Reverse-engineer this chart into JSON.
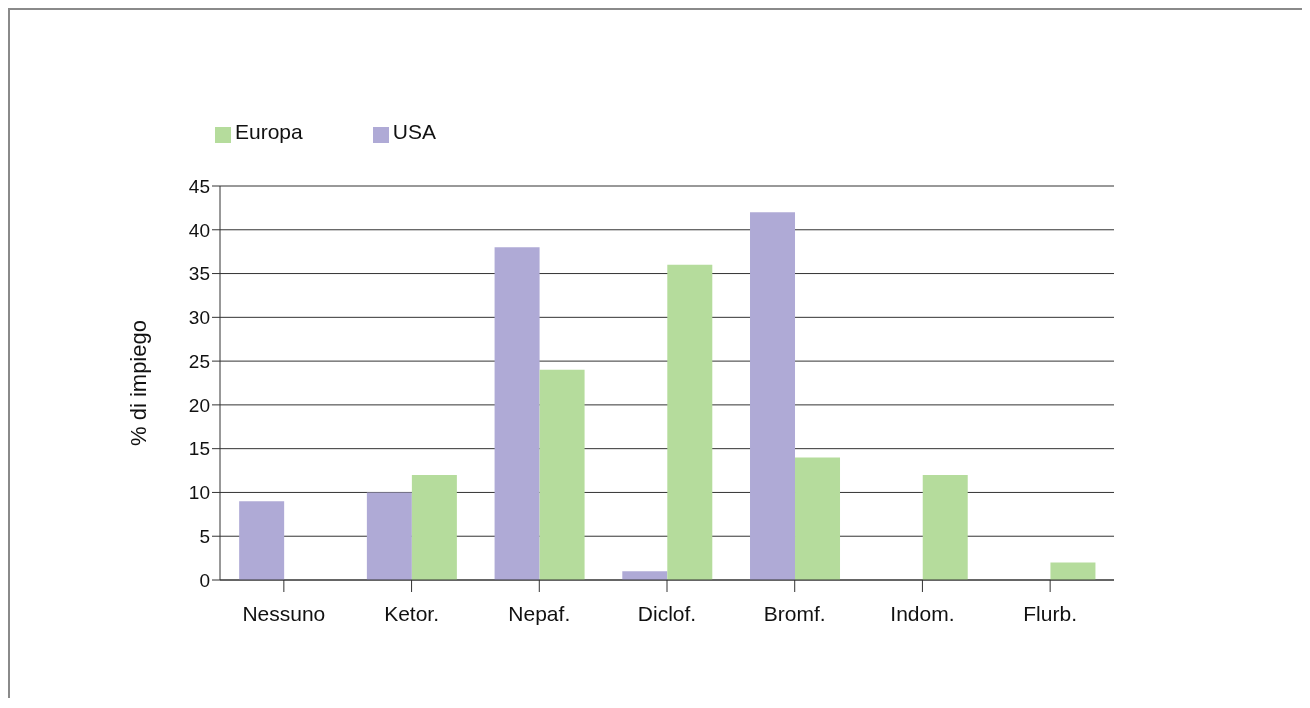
{
  "chart_data": {
    "type": "bar",
    "ylabel": "% di impiego",
    "categories": [
      "Nessuno",
      "Ketor.",
      "Nepaf.",
      "Diclof.",
      "Bromf.",
      "Indom.",
      "Flurb."
    ],
    "series": [
      {
        "name": "USA",
        "color": "#afaad6",
        "values": [
          9,
          10,
          38,
          1,
          42,
          0,
          0
        ]
      },
      {
        "name": "Europa",
        "color": "#b5dc9c",
        "values": [
          0,
          12,
          24,
          36,
          14,
          12,
          2
        ]
      }
    ],
    "ylim": [
      0,
      45
    ],
    "yticks": [
      0,
      5,
      10,
      15,
      20,
      25,
      30,
      35,
      40,
      45
    ],
    "grid": "y",
    "legend": "top left"
  }
}
